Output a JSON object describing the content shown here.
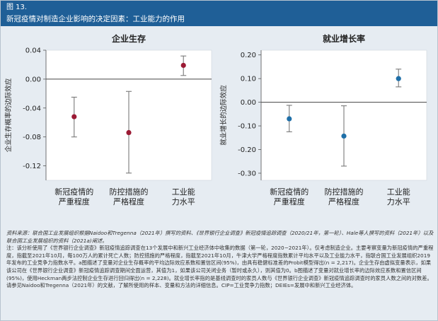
{
  "figure": {
    "label": "图 13.",
    "title": "新冠疫情对制造企业影响的决定因素：工业能力的作用"
  },
  "colors": {
    "header_bg": "#1f5f97",
    "left_marker": "#9b1a34",
    "right_marker": "#1f6fa8",
    "whisker": "#7a7a7a"
  },
  "chart_data": [
    {
      "type": "scatter",
      "title": "企业生存",
      "ylabel": "企业生存概率的边际效应",
      "categories": [
        "新冠疫情的严重程度",
        "防控措施的严格程度",
        "工业能力水平"
      ],
      "category_lines": [
        [
          "新冠疫情的",
          "严重程度"
        ],
        [
          "防控措施的",
          "严格程度"
        ],
        [
          "工业能",
          "力水平"
        ]
      ],
      "values": [
        -0.052,
        -0.074,
        0.019
      ],
      "ci_low": [
        -0.08,
        -0.13,
        0.005
      ],
      "ci_high": [
        -0.025,
        -0.017,
        0.032
      ],
      "ylim": [
        -0.14,
        0.04
      ],
      "yticks": [
        0.04,
        0.0,
        -0.04,
        -0.08,
        -0.12
      ],
      "ytick_labels": [
        "0.04",
        "0.00",
        "-0.04",
        "-0.08",
        "-0.12"
      ],
      "marker_color": "#9b1a34"
    },
    {
      "type": "scatter",
      "title": "就业增长率",
      "ylabel": "就业增长的边际效应",
      "categories": [
        "新冠疫情的严重程度",
        "防控措施的严格程度",
        "工业能力水平"
      ],
      "category_lines": [
        [
          "新冠疫情的",
          "严重程度"
        ],
        [
          "防控措施的",
          "严格程度"
        ],
        [
          "工业能",
          "力水平"
        ]
      ],
      "values": [
        -0.07,
        -0.143,
        0.1
      ],
      "ci_low": [
        -0.125,
        -0.27,
        0.065
      ],
      "ci_high": [
        -0.013,
        -0.015,
        0.14
      ],
      "ylim": [
        -0.33,
        0.22
      ],
      "yticks": [
        0.2,
        0.1,
        0.0,
        -0.1,
        -0.2,
        -0.3
      ],
      "ytick_labels": [
        "0.20",
        "0.10",
        "0.00",
        "-0.10",
        "-0.20",
        "-0.30"
      ],
      "marker_color": "#1f6fa8"
    }
  ],
  "notes": {
    "source": "资料来源：联合国工业发展组织根据Naidoo和Tregenna（2021年）撰写的资料、《世界银行企业调查》新冠疫情追踪调查（2020/21年，第一轮）、Hale等人撰写的资料（2021年）以及联合国工业发展组织的资料（2021a)阐述。",
    "note": "注：该分析使用了《世界银行企业调查》新冠疫情追踪调查在13个发展中和新兴工业经济体中收集的数据（第一轮，2020−2021年）。仅考虑制造企业。主要考察变量为新冠疫情的严重程度，指截至2021年10月，每100万人的累计死亡人数；防控措施的严格程度，指截至2021年10月，牛津大学严格程度指数累计平均水平以及工业能力水平，指联合国工业发展组织2019年发布的工业竞争力指数水平。a图描述了变量对企业生存概率的平均边际效应系数和置信区间(95%)，由具有稳健标准差的Probit模型得出(n = 2,217)。企业生存由虚拟变量表示，如果该公司在《世界银行企业调查》新冠疫情追踪调查期间全面运营，其值为1，如果该公司关闭业务（暂时或永久），则其值为0。b图描述了变量对就业增长率的边际效应系数和置信区间(95%)，使用Heckman两步法控制企业生存进行回归得出(n = 2,228)。就业增长率指的是基线调查时的家员人数与《世界银行企业调查》新冠疫情追踪调查时的家员人数之间的对数差。请参见Naidoo和Tregenna（2021年）的文献，了解所使用的样本、变量和方法的详细信息。CIP=工业竞争力指数；DEIEs=发展中和新兴工业经济体。"
  }
}
